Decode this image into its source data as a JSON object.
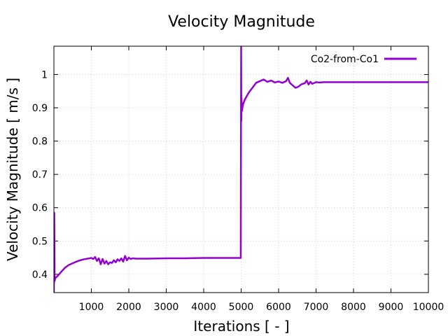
{
  "chart_data": {
    "type": "line",
    "title": "Velocity Magnitude",
    "xlabel": "Iterations [ - ]",
    "ylabel": "Velocity Magnitude [ m/s ]",
    "xlim": [
      0,
      10000
    ],
    "ylim": [
      0.345,
      1.085
    ],
    "xticks": [
      1000,
      2000,
      3000,
      4000,
      5000,
      6000,
      7000,
      8000,
      9000,
      10000
    ],
    "yticks": [
      0.4,
      0.5,
      0.6,
      0.7,
      0.8,
      0.9,
      1.0
    ],
    "ytick_labels": [
      "0.4",
      "0.5",
      "0.6",
      "0.7",
      "0.8",
      "0.9",
      "1"
    ],
    "grid": true,
    "legend_position": "top-right",
    "series": [
      {
        "name": "Co2-from-Co1",
        "color": "#9400d3",
        "x": [
          0,
          10,
          20,
          30,
          50,
          100,
          200,
          300,
          400,
          500,
          600,
          700,
          800,
          900,
          1000,
          1050,
          1100,
          1150,
          1200,
          1250,
          1300,
          1350,
          1400,
          1450,
          1500,
          1550,
          1600,
          1650,
          1700,
          1750,
          1800,
          1850,
          1900,
          1950,
          2000,
          2050,
          2100,
          2200,
          2500,
          3000,
          3500,
          4000,
          4500,
          4980,
          4990,
          5000,
          5005,
          5010,
          5020,
          5050,
          5100,
          5150,
          5200,
          5300,
          5400,
          5500,
          5600,
          5700,
          5800,
          5900,
          6000,
          6100,
          6200,
          6250,
          6300,
          6350,
          6400,
          6450,
          6500,
          6550,
          6600,
          6700,
          6750,
          6800,
          6850,
          6900,
          7000,
          7100,
          7200,
          7500,
          8000,
          8500,
          9000,
          9500,
          10000
        ],
        "y": [
          0.345,
          0.585,
          0.38,
          0.385,
          0.39,
          0.395,
          0.408,
          0.42,
          0.428,
          0.433,
          0.438,
          0.442,
          0.445,
          0.447,
          0.449,
          0.446,
          0.452,
          0.44,
          0.448,
          0.43,
          0.446,
          0.432,
          0.44,
          0.43,
          0.436,
          0.434,
          0.442,
          0.436,
          0.445,
          0.44,
          0.448,
          0.438,
          0.455,
          0.442,
          0.45,
          0.446,
          0.448,
          0.447,
          0.447,
          0.448,
          0.448,
          0.449,
          0.449,
          0.449,
          0.449,
          1.085,
          0.86,
          0.93,
          0.89,
          0.91,
          0.925,
          0.935,
          0.945,
          0.96,
          0.975,
          0.98,
          0.985,
          0.978,
          0.982,
          0.976,
          0.979,
          0.975,
          0.98,
          0.99,
          0.975,
          0.97,
          0.965,
          0.96,
          0.962,
          0.965,
          0.97,
          0.974,
          0.982,
          0.97,
          0.978,
          0.972,
          0.977,
          0.976,
          0.977,
          0.977,
          0.977,
          0.977,
          0.977,
          0.977,
          0.977
        ]
      }
    ]
  }
}
